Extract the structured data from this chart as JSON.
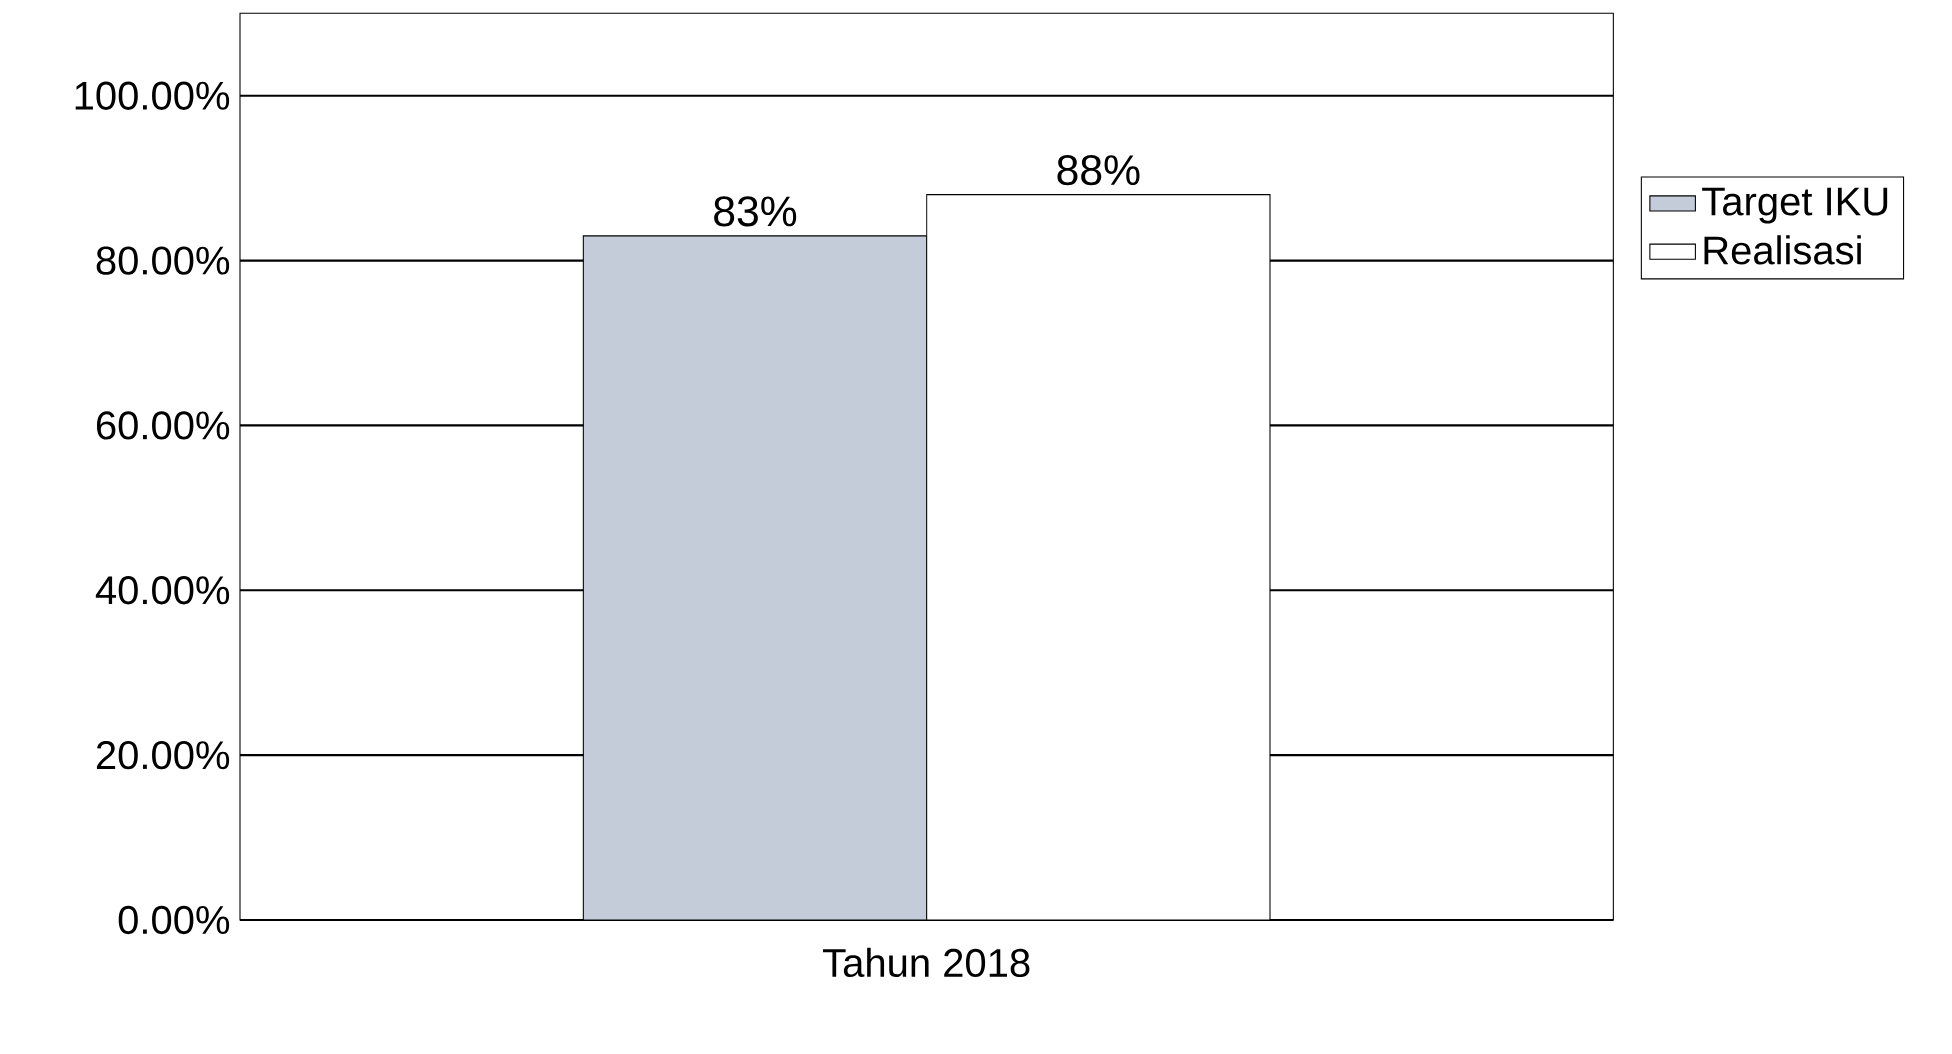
{
  "chart_data": {
    "type": "bar",
    "xlabel": "Tahun 2018",
    "categories": [
      null
    ],
    "series": [
      {
        "name": "Target IKU",
        "color": "#c3ccd8",
        "values": [
          83
        ],
        "value_labels": [
          "83%"
        ]
      },
      {
        "name": "Realisasi",
        "color": "#ffffff",
        "values": [
          88
        ],
        "value_labels": [
          "88%"
        ]
      }
    ],
    "ylim": [
      0,
      110
    ],
    "yticks": [
      {
        "value": 0,
        "label": "0.00%"
      },
      {
        "value": 20,
        "label": "20.00%"
      },
      {
        "value": 40,
        "label": "40.00%"
      },
      {
        "value": 60,
        "label": "60.00%"
      },
      {
        "value": 80,
        "label": "80.00%"
      },
      {
        "value": 100,
        "label": "100.00%"
      }
    ],
    "grid": "y",
    "legend": "right"
  }
}
